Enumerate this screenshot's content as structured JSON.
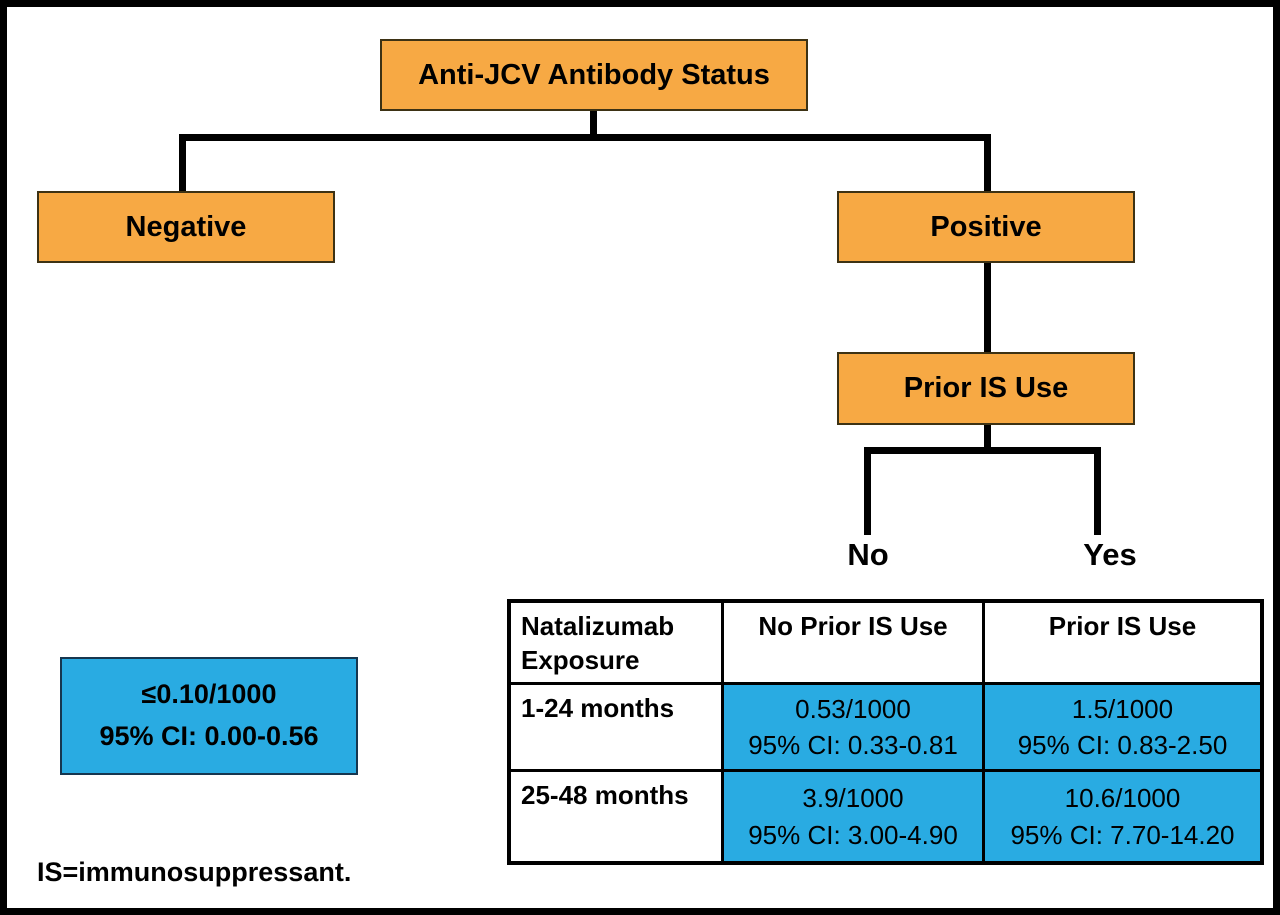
{
  "flowchart": {
    "root_label": "Anti-JCV Antibody Status",
    "negative_label": "Negative",
    "positive_label": "Positive",
    "prior_is_label": "Prior IS Use",
    "branch_no_label": "No",
    "branch_yes_label": "Yes"
  },
  "negative_risk_box": {
    "rate": "≤0.10/1000",
    "ci": "95% CI: 0.00-0.56"
  },
  "risk_table": {
    "headers": [
      "Natalizumab Exposure",
      "No Prior IS Use",
      "Prior IS Use"
    ],
    "rows": [
      {
        "label": "1-24 months",
        "no_prior_rate": "0.53/1000",
        "no_prior_ci": "95% CI: 0.33-0.81",
        "prior_rate": "1.5/1000",
        "prior_ci": "95% CI: 0.83-2.50"
      },
      {
        "label": "25-48 months",
        "no_prior_rate": "3.9/1000",
        "no_prior_ci": "95% CI: 3.00-4.90",
        "prior_rate": "10.6/1000",
        "prior_ci": "95% CI: 7.70-14.20"
      }
    ]
  },
  "footnote": "IS=immunosuppressant.",
  "colors": {
    "node_fill": "#F7A944",
    "risk_fill": "#29ABE2",
    "line": "#000000"
  }
}
